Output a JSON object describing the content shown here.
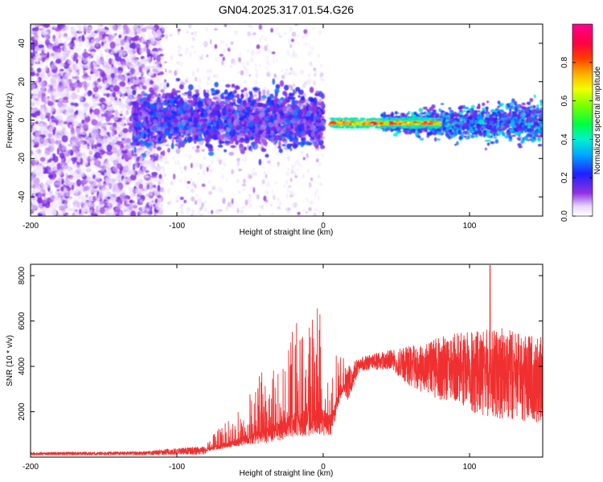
{
  "title": "GN04.2025.317.01.54.G26",
  "chart_data": [
    {
      "type": "heatmap",
      "name": "spectrogram",
      "xlabel": "Height of straight line (km)",
      "ylabel": "Frequency (Hz)",
      "xlim": [
        -200,
        150
      ],
      "ylim": [
        -50,
        50
      ],
      "xticks": [
        -200,
        -100,
        0,
        100
      ],
      "yticks": [
        -40,
        -20,
        0,
        20,
        40
      ],
      "colorbar": {
        "label": "Normalized spectral amplitude",
        "range": [
          0,
          1
        ],
        "ticks": [
          0.0,
          0.2,
          0.4,
          0.6,
          0.8
        ],
        "tick_labels": [
          "0.0",
          "0.2",
          "0.4",
          "0.6",
          "0.8"
        ],
        "colormap": "rainbow (white → violet → blue → cyan → green → yellow → red → magenta)"
      },
      "description": {
        "noise_region_x": [
          -200,
          -130
        ],
        "signal_band_x": [
          -130,
          0
        ],
        "signal_band_halfwidth_hz": 12,
        "carrier_x": [
          5,
          80
        ],
        "carrier_frequency_hz": -1.5,
        "tail_x": [
          80,
          150
        ]
      }
    },
    {
      "type": "line",
      "name": "snr",
      "xlabel": "Height of straight line (km)",
      "ylabel": "SNR (10 * v/v)",
      "xlim": [
        -200,
        150
      ],
      "ylim": [
        0,
        8500
      ],
      "xticks": [
        -200,
        -100,
        0,
        100
      ],
      "yticks": [
        2000,
        4000,
        6000,
        8000
      ],
      "color": "#f03030",
      "profile": [
        {
          "x": -200,
          "mean": 150,
          "spread": 60
        },
        {
          "x": -120,
          "mean": 170,
          "spread": 80
        },
        {
          "x": -110,
          "mean": 220,
          "spread": 120
        },
        {
          "x": -80,
          "mean": 300,
          "spread": 180
        },
        {
          "x": -60,
          "mean": 600,
          "spread": 500
        },
        {
          "x": -40,
          "mean": 900,
          "spread": 1200
        },
        {
          "x": -20,
          "mean": 1300,
          "spread": 1800
        },
        {
          "x": -5,
          "mean": 1500,
          "spread": 2200
        },
        {
          "x": 5,
          "mean": 1300,
          "spread": 1600
        },
        {
          "x": 12,
          "mean": 2800,
          "spread": 1000
        },
        {
          "x": 25,
          "mean": 4100,
          "spread": 300
        },
        {
          "x": 45,
          "mean": 4300,
          "spread": 400
        },
        {
          "x": 60,
          "mean": 4000,
          "spread": 900
        },
        {
          "x": 80,
          "mean": 3900,
          "spread": 1400
        },
        {
          "x": 100,
          "mean": 3800,
          "spread": 1800
        },
        {
          "x": 120,
          "mean": 3700,
          "spread": 2000
        },
        {
          "x": 150,
          "mean": 3400,
          "spread": 1900
        }
      ],
      "peak": {
        "x": 114,
        "y": 8450
      }
    }
  ]
}
